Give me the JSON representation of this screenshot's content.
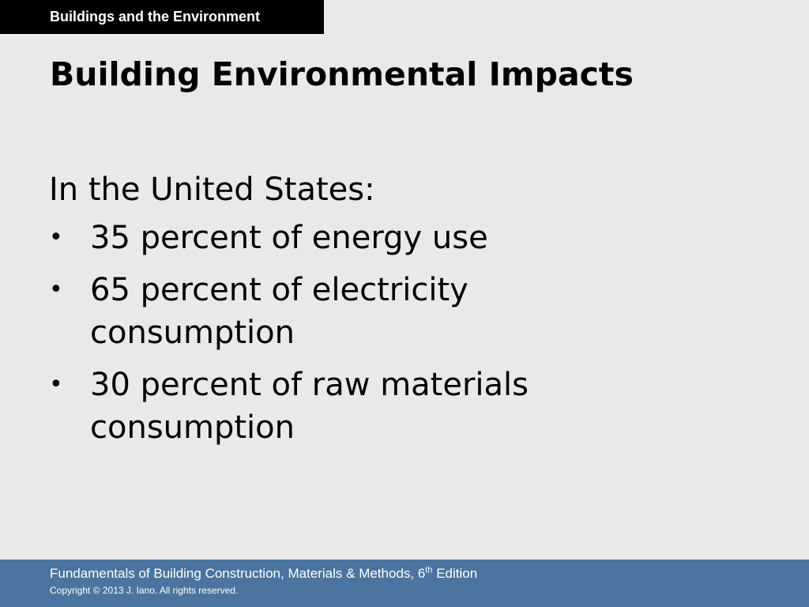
{
  "header": {
    "section_tag": "Buildings and the Environment",
    "title": "Building Environmental Impacts"
  },
  "content": {
    "intro": "In the United States:",
    "bullet_symbol": "•",
    "bullets": [
      "35 percent of energy use",
      "65 percent of electricity consumption",
      "30 percent of raw materials consumption"
    ]
  },
  "footer": {
    "book_title_prefix": "Fundamentals of Building Construction, Materials & Methods, 6",
    "edition_superscript": "th",
    "edition_suffix": " Edition",
    "copyright": "Copyright © 2013 J. Iano. All rights reserved."
  },
  "colors": {
    "background": "#e9e9e9",
    "section_tag_background": "#000000",
    "footer_background": "#4b74a0",
    "text": "#000000",
    "footer_text": "#ffffff"
  }
}
